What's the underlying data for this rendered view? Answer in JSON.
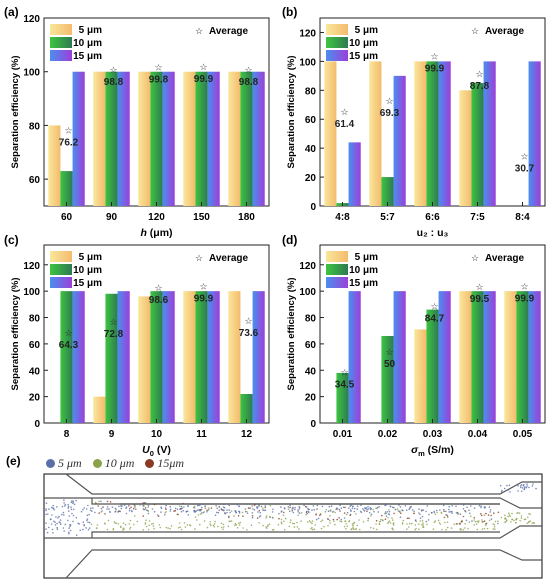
{
  "legend": {
    "s5": "5 μm",
    "s10": "10 μm",
    "s15": "15 μm",
    "avg": "Average",
    "avg_symbol": "☆"
  },
  "colors": {
    "s5": [
      "#f9e79a",
      "#f4bb6e"
    ],
    "s10": [
      "#3dc540",
      "#2e7a52"
    ],
    "s15": [
      "#4a8ff0",
      "#9c3fd8"
    ],
    "avg": "#1a1a1a"
  },
  "chart_data": [
    {
      "panel": "(a)",
      "type": "bar",
      "xlabel_main": "h",
      "xlabel_unit": " (μm)",
      "ylabel": "Separation efficiency (%)",
      "categories": [
        "60",
        "90",
        "120",
        "150",
        "180"
      ],
      "ylim": [
        50,
        120
      ],
      "yticks": [
        60,
        80,
        100,
        120
      ],
      "series": [
        {
          "name": "5 μm",
          "values": [
            80,
            100,
            100,
            100,
            100
          ]
        },
        {
          "name": "10 μm",
          "values": [
            63,
            100,
            100,
            100,
            100
          ]
        },
        {
          "name": "15 μm",
          "values": [
            100,
            100,
            100,
            100,
            100
          ]
        }
      ],
      "average": [
        76.2,
        98.8,
        99.8,
        99.9,
        98.8
      ]
    },
    {
      "panel": "(b)",
      "type": "bar",
      "xlabel_main": "u₂ : u₃",
      "xlabel_unit": "",
      "ylabel": "Separation efficiency (%)",
      "categories": [
        "4:8",
        "5:7",
        "6:6",
        "7:5",
        "8:4"
      ],
      "ylim": [
        0,
        130
      ],
      "yticks": [
        0,
        20,
        40,
        60,
        80,
        100,
        120
      ],
      "series": [
        {
          "name": "5 μm",
          "values": [
            100,
            100,
            100,
            80,
            0
          ]
        },
        {
          "name": "10 μm",
          "values": [
            2,
            20,
            100,
            85,
            0
          ]
        },
        {
          "name": "15 μm",
          "values": [
            44,
            90,
            100,
            100,
            100
          ]
        }
      ],
      "average": [
        61.4,
        69.3,
        99.9,
        87.8,
        30.7
      ]
    },
    {
      "panel": "(c)",
      "type": "bar",
      "xlabel_main": "U",
      "xlabel_sub": "0",
      "xlabel_unit": " (V)",
      "ylabel": "Separation efficiency (%)",
      "categories": [
        "8",
        "9",
        "10",
        "11",
        "12"
      ],
      "ylim": [
        0,
        135
      ],
      "yticks": [
        0,
        20,
        40,
        60,
        80,
        100,
        120
      ],
      "series": [
        {
          "name": "5 μm",
          "values": [
            0,
            20,
            96,
            100,
            100
          ]
        },
        {
          "name": "10 μm",
          "values": [
            100,
            98,
            100,
            100,
            22
          ]
        },
        {
          "name": "15 μm",
          "values": [
            100,
            100,
            100,
            100,
            100
          ]
        }
      ],
      "average": [
        64.3,
        72.8,
        98.6,
        99.9,
        73.6
      ]
    },
    {
      "panel": "(d)",
      "type": "bar",
      "xlabel_main": "σ",
      "xlabel_sub": "m",
      "xlabel_unit": " (S/m)",
      "ylabel": "Separation efficiency (%)",
      "categories": [
        "0.01",
        "0.02",
        "0.03",
        "0.04",
        "0.05"
      ],
      "ylim": [
        0,
        135
      ],
      "yticks": [
        0,
        20,
        40,
        60,
        80,
        100,
        120
      ],
      "series": [
        {
          "name": "5 μm",
          "values": [
            0,
            0,
            71,
            100,
            100
          ]
        },
        {
          "name": "10 μm",
          "values": [
            38,
            66,
            86,
            100,
            100
          ]
        },
        {
          "name": "15 μm",
          "values": [
            100,
            100,
            100,
            100,
            100
          ]
        }
      ],
      "average": [
        34.5,
        50,
        84.7,
        99.5,
        99.9
      ]
    }
  ],
  "panel_e": {
    "label": "(e)",
    "legend": [
      "5 μm",
      "10 μm",
      "15μm"
    ],
    "legend_colors": [
      "#5a6fa8",
      "#8aa24a",
      "#8a3a24"
    ]
  }
}
